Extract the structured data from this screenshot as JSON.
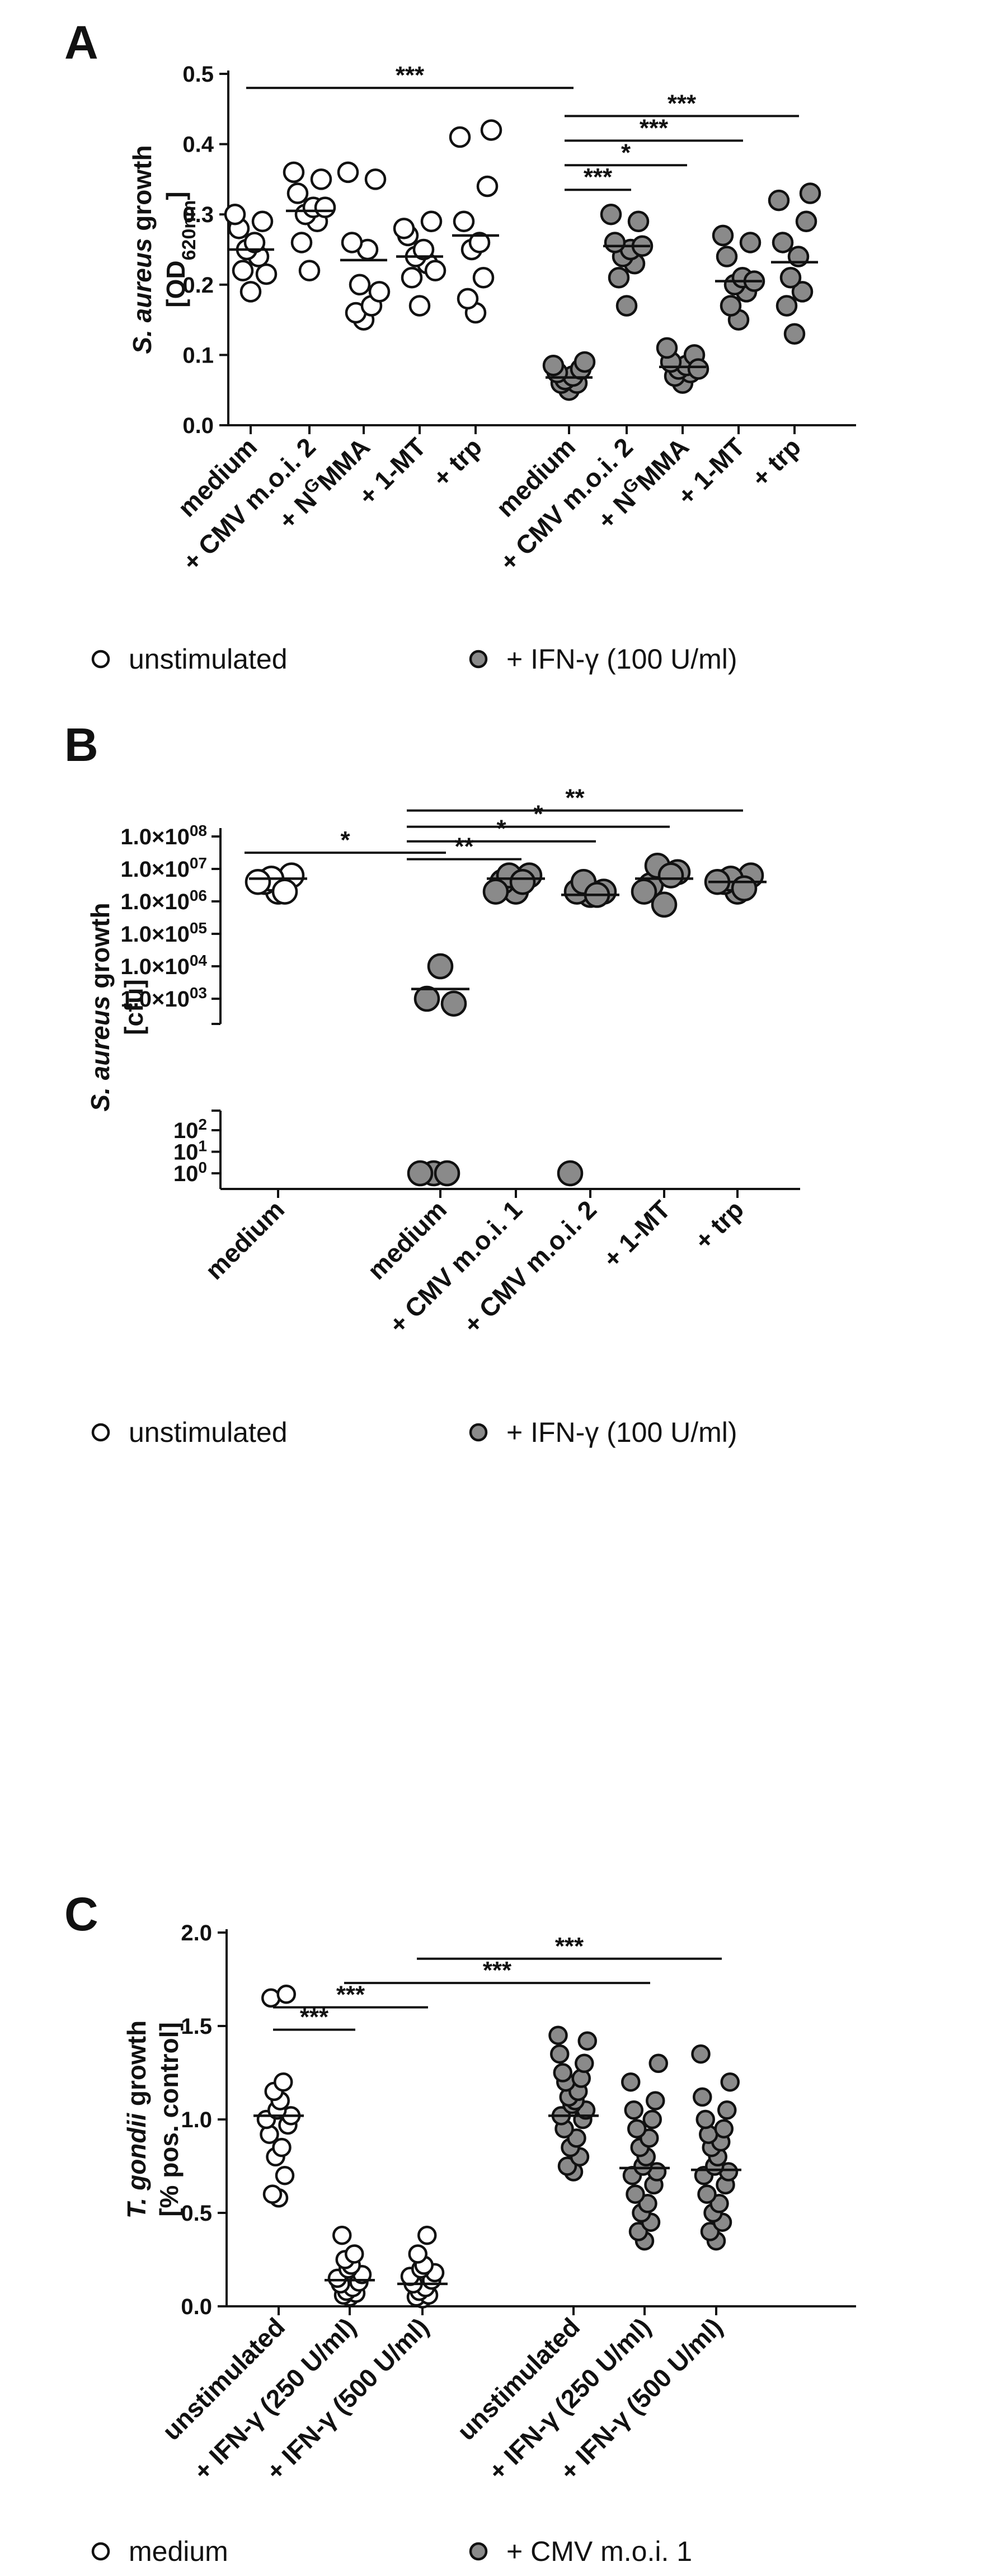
{
  "chart_data": [
    {
      "panel": "A",
      "type": "scatter",
      "ylabel_line1_italic": "S. aureus",
      "ylabel_line1_rest": " growth",
      "ylabel_line2_prefix": "[OD",
      "ylabel_line2_sub": "620nm",
      "ylabel_line2_suffix": "]",
      "ylim": [
        0.0,
        0.5
      ],
      "yticks": [
        "0.0",
        "0.1",
        "0.2",
        "0.3",
        "0.4",
        "0.5"
      ],
      "categories": [
        "medium",
        "+ CMV m.o.i. 2",
        "+ NGMMA",
        "+ 1-MT",
        "+ trp",
        "medium",
        "+ CMV m.o.i. 2",
        "+ NGMMA",
        "+ 1-MT",
        "+ trp"
      ],
      "category_labels": [
        {
          "main": "medium"
        },
        {
          "main": "+ CMV m.o.i. 2"
        },
        {
          "pre": "+ N",
          "sup": "G",
          "post": "MMA"
        },
        {
          "main": "+ 1-MT"
        },
        {
          "main": "+ trp"
        },
        {
          "main": "medium"
        },
        {
          "main": "+ CMV m.o.i. 2"
        },
        {
          "pre": "+ N",
          "sup": "G",
          "post": "MMA"
        },
        {
          "main": "+ 1-MT"
        },
        {
          "main": "+ trp"
        }
      ],
      "series": [
        {
          "name": "unstimulated",
          "fill": "#ffffff",
          "groups": [
            0,
            1,
            2,
            3,
            4
          ]
        },
        {
          "name": "+ IFN-γ (100 U/ml)",
          "fill": "#8a8a8a",
          "groups": [
            5,
            6,
            7,
            8,
            9
          ]
        }
      ],
      "points": [
        [
          0.19,
          0.22,
          0.24,
          0.25,
          0.26,
          0.28,
          0.29,
          0.3,
          0.215
        ],
        [
          0.22,
          0.26,
          0.29,
          0.3,
          0.31,
          0.33,
          0.35,
          0.36,
          0.31
        ],
        [
          0.15,
          0.16,
          0.17,
          0.2,
          0.25,
          0.26,
          0.35,
          0.36,
          0.19
        ],
        [
          0.17,
          0.21,
          0.23,
          0.24,
          0.25,
          0.27,
          0.29,
          0.28,
          0.22
        ],
        [
          0.16,
          0.18,
          0.21,
          0.25,
          0.26,
          0.29,
          0.34,
          0.41,
          0.42
        ],
        [
          0.05,
          0.06,
          0.06,
          0.065,
          0.07,
          0.075,
          0.08,
          0.085,
          0.09
        ],
        [
          0.17,
          0.21,
          0.23,
          0.24,
          0.25,
          0.26,
          0.29,
          0.3,
          0.255
        ],
        [
          0.06,
          0.07,
          0.075,
          0.08,
          0.085,
          0.09,
          0.1,
          0.11,
          0.08
        ],
        [
          0.15,
          0.17,
          0.19,
          0.2,
          0.21,
          0.24,
          0.26,
          0.27,
          0.205
        ],
        [
          0.13,
          0.17,
          0.19,
          0.21,
          0.24,
          0.26,
          0.29,
          0.32,
          0.33
        ]
      ],
      "medians": [
        0.25,
        0.305,
        0.235,
        0.24,
        0.27,
        0.068,
        0.255,
        0.083,
        0.205,
        0.232
      ],
      "significance": [
        {
          "from": 0,
          "to": 5,
          "y": 0.48,
          "label": "***"
        },
        {
          "from": 5,
          "to": 9,
          "y": 0.44,
          "label": "***"
        },
        {
          "from": 5,
          "to": 8,
          "y": 0.405,
          "label": "***"
        },
        {
          "from": 5,
          "to": 7,
          "y": 0.37,
          "label": "*"
        },
        {
          "from": 5,
          "to": 6,
          "y": 0.335,
          "label": "***"
        }
      ],
      "legend": {
        "open_label": "unstimulated",
        "filled_label": "+ IFN-γ (100 U/ml)"
      }
    },
    {
      "panel": "B",
      "type": "scatter",
      "ylabel_line1_italic": "S. aureus",
      "ylabel_line1_rest": " growth",
      "ylabel_line2": "[cfu]",
      "log_scale": true,
      "broken_axis": true,
      "upper_yticks": [
        {
          "mant": "1.0×10",
          "exp": "08",
          "log": 8
        },
        {
          "mant": "1.0×10",
          "exp": "07",
          "log": 7
        },
        {
          "mant": "1.0×10",
          "exp": "06",
          "log": 6
        },
        {
          "mant": "1.0×10",
          "exp": "05",
          "log": 5
        },
        {
          "mant": "1.0×10",
          "exp": "04",
          "log": 4
        },
        {
          "mant": "1.0×10",
          "exp": "03",
          "log": 3
        }
      ],
      "lower_yticks": [
        {
          "mant": "10",
          "exp": "2",
          "log": 2
        },
        {
          "mant": "10",
          "exp": "1",
          "log": 1
        },
        {
          "mant": "10",
          "exp": "0",
          "log": 0
        }
      ],
      "categories": [
        "medium",
        "medium",
        "+ CMV m.o.i. 1",
        "+ CMV m.o.i. 2",
        "+ 1-MT",
        "+ trp"
      ],
      "series": [
        {
          "name": "unstimulated",
          "fill": "#ffffff",
          "groups": [
            0
          ]
        },
        {
          "name": "+ IFN-γ (100 U/ml)",
          "fill": "#8a8a8a",
          "groups": [
            1,
            2,
            3,
            4,
            5
          ]
        }
      ],
      "points_log10": [
        [
          6.3,
          6.6,
          6.8,
          6.7,
          6.3,
          6.6
        ],
        [
          4.0,
          3.0,
          2.85,
          0,
          0,
          0
        ],
        [
          6.3,
          6.6,
          6.8,
          6.8,
          6.6,
          6.3
        ],
        [
          6.2,
          6.3,
          6.3,
          6.6,
          6.2,
          0
        ],
        [
          5.9,
          6.5,
          6.9,
          7.1,
          6.8,
          6.3
        ],
        [
          6.3,
          6.6,
          6.8,
          6.7,
          6.4,
          6.6
        ]
      ],
      "medians_log10": [
        6.7,
        3.3,
        6.7,
        6.2,
        6.7,
        6.6
      ],
      "significance": [
        {
          "from": 0,
          "to": 1,
          "y": 7.5,
          "label": "*"
        },
        {
          "from": 1,
          "to": 2,
          "y": 7.3,
          "label": "**"
        },
        {
          "from": 1,
          "to": 3,
          "y": 7.85,
          "label": "*"
        },
        {
          "from": 1,
          "to": 4,
          "y": 8.3,
          "label": "*"
        },
        {
          "from": 1,
          "to": 5,
          "y": 8.8,
          "label": "**"
        }
      ],
      "legend": {
        "open_label": "unstimulated",
        "filled_label": "+ IFN-γ (100 U/ml)"
      }
    },
    {
      "panel": "C",
      "type": "scatter",
      "ylabel_line1_italic": "T. gondii",
      "ylabel_line1_rest": " growth",
      "ylabel_line2": "[% pos. control]",
      "ylim": [
        0.0,
        2.0
      ],
      "yticks": [
        "0.0",
        "0.5",
        "1.0",
        "1.5",
        "2.0"
      ],
      "categories": [
        "unstimulated",
        "+ IFN-γ (250 U/ml)",
        "+ IFN-γ (500 U/ml)",
        "unstimulated",
        "+ IFN-γ (250 U/ml)",
        "+ IFN-γ (500 U/ml)"
      ],
      "series": [
        {
          "name": "medium",
          "fill": "#ffffff",
          "groups": [
            0,
            1,
            2
          ]
        },
        {
          "name": "+ CMV m.o.i. 1",
          "fill": "#8a8a8a",
          "groups": [
            3,
            4,
            5
          ]
        }
      ],
      "points": [
        [
          0.58,
          0.6,
          0.7,
          0.8,
          0.85,
          0.92,
          0.97,
          1.0,
          1.02,
          1.05,
          1.1,
          1.15,
          1.2,
          1.65,
          1.67
        ],
        [
          0.05,
          0.06,
          0.07,
          0.08,
          0.1,
          0.12,
          0.13,
          0.15,
          0.17,
          0.2,
          0.22,
          0.25,
          0.28,
          0.38
        ],
        [
          0.04,
          0.05,
          0.06,
          0.08,
          0.1,
          0.12,
          0.14,
          0.16,
          0.18,
          0.2,
          0.22,
          0.28,
          0.38
        ],
        [
          0.72,
          0.75,
          0.8,
          0.85,
          0.9,
          0.95,
          1.0,
          1.02,
          1.05,
          1.08,
          1.1,
          1.12,
          1.15,
          1.2,
          1.22,
          1.25,
          1.3,
          1.35,
          1.42,
          1.45
        ],
        [
          0.35,
          0.4,
          0.45,
          0.5,
          0.55,
          0.6,
          0.65,
          0.7,
          0.72,
          0.75,
          0.8,
          0.85,
          0.9,
          0.95,
          1.0,
          1.05,
          1.1,
          1.2,
          1.3
        ],
        [
          0.35,
          0.4,
          0.45,
          0.5,
          0.55,
          0.6,
          0.65,
          0.7,
          0.72,
          0.75,
          0.8,
          0.85,
          0.88,
          0.92,
          0.95,
          1.0,
          1.05,
          1.12,
          1.2,
          1.35
        ]
      ],
      "medians": [
        1.02,
        0.14,
        0.12,
        1.02,
        0.74,
        0.73
      ],
      "significance": [
        {
          "from": 0,
          "to": 1,
          "y": 1.48,
          "label": "***"
        },
        {
          "from": 0,
          "to": 2,
          "y": 1.6,
          "label": "***"
        },
        {
          "from": 1,
          "to": 4,
          "y": 1.73,
          "label": "***"
        },
        {
          "from": 2,
          "to": 5,
          "y": 1.86,
          "label": "***"
        }
      ],
      "legend": {
        "open_label": "medium",
        "filled_label": "+ CMV m.o.i. 1"
      }
    }
  ]
}
